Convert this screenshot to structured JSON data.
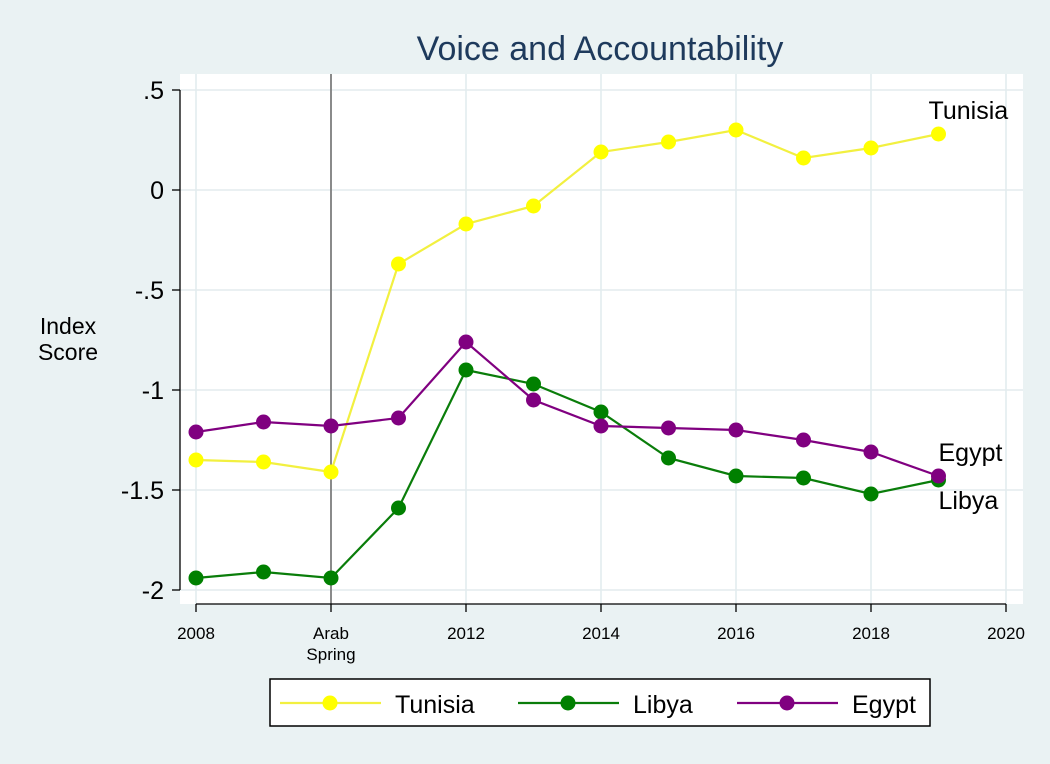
{
  "chart_data": {
    "type": "line",
    "title": "Voice and Accountability",
    "ylabel_lines": [
      "Index",
      "Score"
    ],
    "xlabel": "",
    "xlim": [
      2008,
      2020
    ],
    "ylim": [
      -2,
      0.5
    ],
    "x_ticks": [
      {
        "value": 2008,
        "lines": [
          "2008"
        ]
      },
      {
        "value": 2010,
        "lines": [
          "Arab",
          "Spring"
        ]
      },
      {
        "value": 2012,
        "lines": [
          "2012"
        ]
      },
      {
        "value": 2014,
        "lines": [
          "2014"
        ]
      },
      {
        "value": 2016,
        "lines": [
          "2016"
        ]
      },
      {
        "value": 2018,
        "lines": [
          "2018"
        ]
      },
      {
        "value": 2020,
        "lines": [
          "2020"
        ]
      }
    ],
    "y_ticks": [
      {
        "value": 0.5,
        "label": ".5"
      },
      {
        "value": 0,
        "label": "0"
      },
      {
        "value": -0.5,
        "label": "-.5"
      },
      {
        "value": -1,
        "label": "-1"
      },
      {
        "value": -1.5,
        "label": "-1.5"
      },
      {
        "value": -2,
        "label": "-2"
      }
    ],
    "reference_line_x": 2010,
    "grid": true,
    "legend_position": "bottom",
    "x": [
      2008,
      2009,
      2010,
      2011,
      2012,
      2013,
      2014,
      2015,
      2016,
      2017,
      2018,
      2019
    ],
    "series": [
      {
        "name": "Tunisia",
        "color": "#ffff00",
        "line_color": "#f2f040",
        "values": [
          -1.35,
          -1.36,
          -1.41,
          -0.37,
          -0.17,
          -0.08,
          0.19,
          0.24,
          0.3,
          0.16,
          0.21,
          0.28
        ],
        "end_label": "Tunisia"
      },
      {
        "name": "Libya",
        "color": "#008000",
        "line_color": "#0a7d0a",
        "values": [
          -1.94,
          -1.91,
          -1.94,
          -1.59,
          -0.9,
          -0.97,
          -1.11,
          -1.34,
          -1.43,
          -1.44,
          -1.52,
          -1.45
        ],
        "end_label": "Libya"
      },
      {
        "name": "Egypt",
        "color": "#800080",
        "line_color": "#800080",
        "values": [
          -1.21,
          -1.16,
          -1.18,
          -1.14,
          -0.76,
          -1.05,
          -1.18,
          -1.19,
          -1.2,
          -1.25,
          -1.31,
          -1.43
        ],
        "end_label": "Egypt"
      }
    ]
  }
}
